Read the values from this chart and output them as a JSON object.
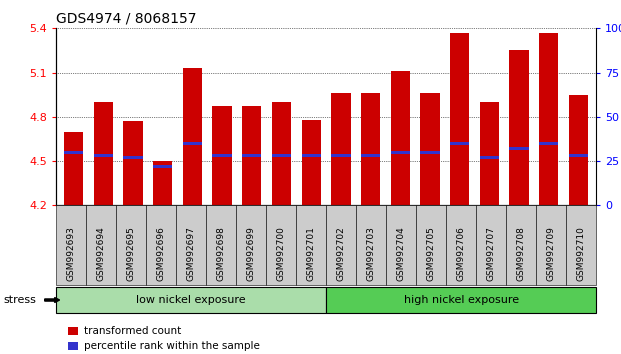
{
  "title": "GDS4974 / 8068157",
  "samples": [
    "GSM992693",
    "GSM992694",
    "GSM992695",
    "GSM992696",
    "GSM992697",
    "GSM992698",
    "GSM992699",
    "GSM992700",
    "GSM992701",
    "GSM992702",
    "GSM992703",
    "GSM992704",
    "GSM992705",
    "GSM992706",
    "GSM992707",
    "GSM992708",
    "GSM992709",
    "GSM992710"
  ],
  "transformed_counts": [
    4.7,
    4.9,
    4.77,
    4.5,
    5.13,
    4.87,
    4.87,
    4.9,
    4.78,
    4.96,
    4.96,
    5.11,
    4.96,
    5.37,
    4.9,
    5.25,
    5.37,
    4.95
  ],
  "percentile_ranks": [
    30,
    28,
    27,
    22,
    35,
    28,
    28,
    28,
    28,
    28,
    28,
    30,
    30,
    35,
    27,
    32,
    35,
    28
  ],
  "ymin": 4.2,
  "ymax": 5.4,
  "yticks": [
    4.2,
    4.5,
    4.8,
    5.1,
    5.4
  ],
  "right_yticks": [
    0,
    25,
    50,
    75,
    100
  ],
  "bar_color": "#CC0000",
  "marker_color": "#3333CC",
  "bar_width": 0.65,
  "group1_label": "low nickel exposure",
  "group2_label": "high nickel exposure",
  "group1_count": 9,
  "group2_count": 9,
  "stress_label": "stress",
  "legend_bar": "transformed count",
  "legend_marker": "percentile rank within the sample",
  "bg_plot": "#FFFFFF",
  "group1_color": "#AADDAA",
  "group2_color": "#55CC55",
  "xticklabel_bg": "#CCCCCC"
}
